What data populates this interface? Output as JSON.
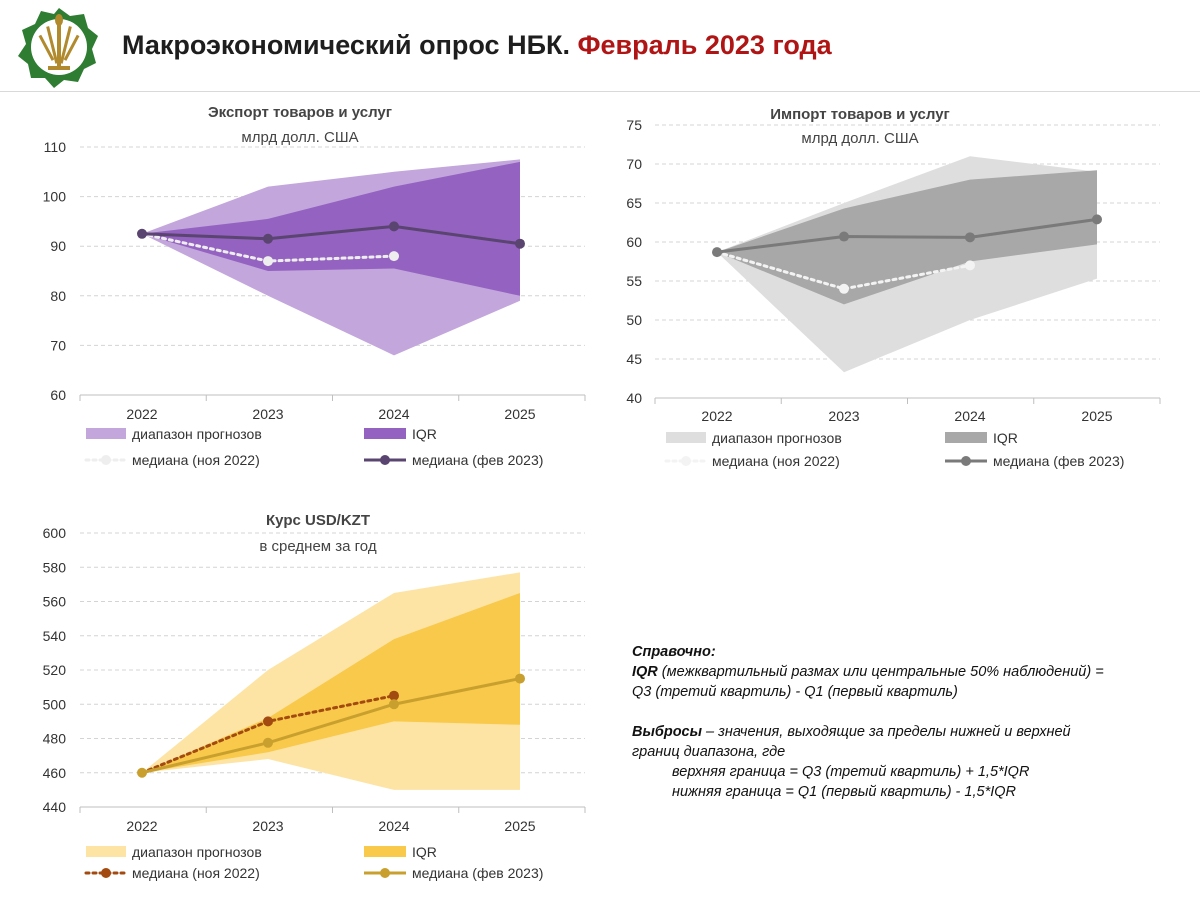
{
  "header": {
    "title_main": "Макроэкономический опрос НБК.",
    "title_date": "Февраль 2023 года",
    "logo_icon": "nbk-logo-icon"
  },
  "colors": {
    "title_date": "#b01515",
    "export_range": "#c3a6dc",
    "export_iqr": "#9462c0",
    "export_line": "#5a4470",
    "export_nov": "#eeeeee",
    "import_range": "#dedede",
    "import_iqr": "#a8a8a8",
    "import_line": "#7a7a7a",
    "import_nov": "#f3f3f3",
    "fx_range": "#fde4a4",
    "fx_iqr": "#f8c94a",
    "fx_line": "#c9a02e",
    "fx_nov": "#a34a10"
  },
  "chart_data": [
    {
      "id": "export",
      "type": "area",
      "title": "Экспорт товаров и услуг",
      "subtitle": "млрд долл. США",
      "categories": [
        "2022",
        "2023",
        "2024",
        "2025"
      ],
      "ylim": [
        60,
        110
      ],
      "yticks": [
        60,
        70,
        80,
        90,
        100,
        110
      ],
      "grid": true,
      "range_low": [
        92.5,
        80,
        68,
        79
      ],
      "range_high": [
        92.5,
        102,
        105,
        107.5
      ],
      "iqr_low": [
        92.5,
        85,
        85.5,
        80
      ],
      "iqr_high": [
        92.5,
        95.5,
        102,
        107
      ],
      "median_feb2023": [
        92.5,
        91.5,
        94,
        90.5
      ],
      "median_nov2022": [
        92.5,
        87,
        88,
        null
      ],
      "legend": {
        "range": "диапазон прогнозов",
        "iqr": "IQR",
        "median_nov": "медиана (ноя 2022)",
        "median_feb": "медиана (фев 2023)"
      }
    },
    {
      "id": "import",
      "type": "area",
      "title": "Импорт товаров и услуг",
      "subtitle": "млрд долл. США",
      "categories": [
        "2022",
        "2023",
        "2024",
        "2025"
      ],
      "ylim": [
        40,
        75
      ],
      "yticks": [
        40,
        45,
        50,
        55,
        60,
        65,
        70,
        75
      ],
      "grid": true,
      "range_low": [
        58.7,
        43.3,
        50,
        55.3
      ],
      "range_high": [
        58.7,
        65,
        71,
        69
      ],
      "iqr_low": [
        58.7,
        52,
        57.5,
        59.7
      ],
      "iqr_high": [
        58.7,
        64.3,
        68,
        69.2
      ],
      "median_feb2023": [
        58.7,
        60.7,
        60.6,
        62.9
      ],
      "median_nov2022": [
        58.7,
        54,
        57,
        null
      ],
      "legend": {
        "range": "диапазон прогнозов",
        "iqr": "IQR",
        "median_nov": "медиана (ноя 2022)",
        "median_feb": "медиана (фев 2023)"
      }
    },
    {
      "id": "fx",
      "type": "area",
      "title": "Курс USD/KZT",
      "subtitle": "в среднем за год",
      "categories": [
        "2022",
        "2023",
        "2024",
        "2025"
      ],
      "ylim": [
        440,
        600
      ],
      "yticks": [
        440,
        460,
        480,
        500,
        520,
        540,
        560,
        580,
        600
      ],
      "grid": true,
      "range_low": [
        460,
        468,
        450,
        450
      ],
      "range_high": [
        460,
        520,
        565,
        577
      ],
      "iqr_low": [
        460,
        472,
        490,
        488
      ],
      "iqr_high": [
        460,
        492,
        538,
        565
      ],
      "median_feb2023": [
        460,
        477.5,
        500,
        515
      ],
      "median_nov2022": [
        460,
        490,
        505,
        null
      ],
      "legend": {
        "range": "диапазон прогнозов",
        "iqr": "IQR",
        "median_nov": "медиана (ноя 2022)",
        "median_feb": "медиана (фев 2023)"
      }
    }
  ],
  "note": {
    "heading": "Справочно:",
    "iqr_term": "IQR",
    "iqr_def_1": " (межквартильный размах или центральные 50% наблюдений) =",
    "iqr_def_2": "Q3 (третий квартиль) - Q1 (первый квартиль)",
    "outliers_term": "Выбросы",
    "outliers_def_1": " – значения, выходящие за пределы нижней и верхней",
    "outliers_def_2": "границ диапазона, где",
    "upper": "верхняя граница = Q3 (третий квартиль) + 1,5*IQR",
    "lower": "нижняя граница = Q1 (первый квартиль) - 1,5*IQR"
  }
}
